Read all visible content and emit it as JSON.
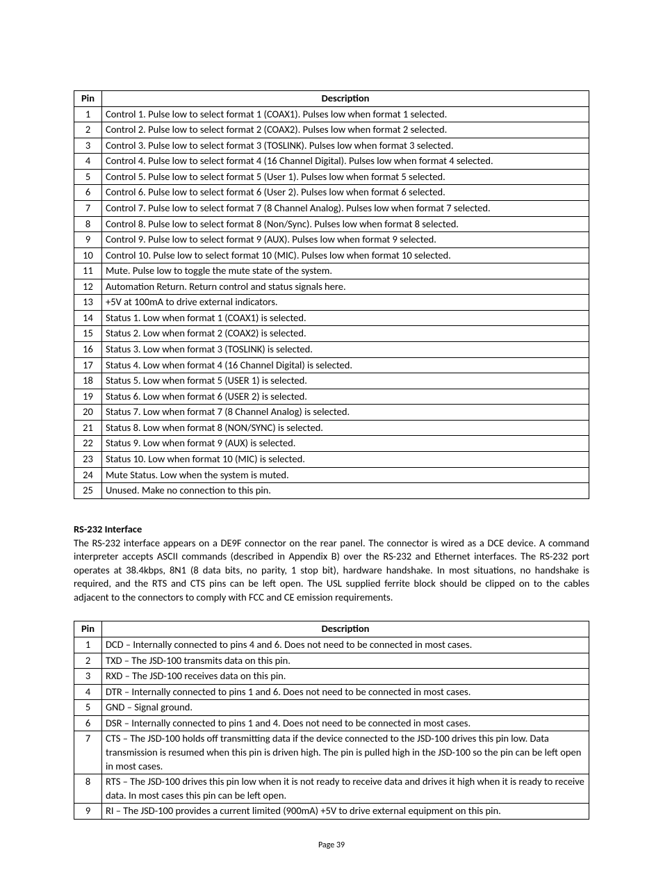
{
  "table1": {
    "headers": {
      "pin": "Pin",
      "desc": "Description"
    },
    "rows": [
      {
        "pin": "1",
        "desc": "Control 1.  Pulse low to select format 1 (COAX1). Pulses low when format 1 selected."
      },
      {
        "pin": "2",
        "desc": "Control 2.  Pulse low to select format 2 (COAX2). Pulses low when format 2 selected."
      },
      {
        "pin": "3",
        "desc": "Control 3.  Pulse low to select format 3 (TOSLINK). Pulses low when format 3 selected."
      },
      {
        "pin": "4",
        "desc": "Control 4.  Pulse low to select format 4 (16 Channel Digital). Pulses low when format 4 selected."
      },
      {
        "pin": "5",
        "desc": "Control 5.  Pulse low to select format 5 (User 1). Pulses low when format 5 selected."
      },
      {
        "pin": "6",
        "desc": "Control 6.  Pulse low to select format 6 (User 2). Pulses low when format 6 selected."
      },
      {
        "pin": "7",
        "desc": "Control 7.  Pulse low to select format 7 (8 Channel Analog). Pulses low when format 7 selected."
      },
      {
        "pin": "8",
        "desc": "Control 8.  Pulse low to select format 8 (Non/Sync). Pulses low when format 8 selected."
      },
      {
        "pin": "9",
        "desc": "Control 9.  Pulse low to select format 9 (AUX). Pulses low when format 9 selected."
      },
      {
        "pin": "10",
        "desc": "Control 10.  Pulse low to select format 10 (MIC). Pulses low when format 10 selected."
      },
      {
        "pin": "11",
        "desc": "Mute.  Pulse low to toggle the mute state of the system."
      },
      {
        "pin": "12",
        "desc": "Automation Return.  Return control and status signals here."
      },
      {
        "pin": "13",
        "desc": "+5V at 100mA to drive external indicators."
      },
      {
        "pin": "14",
        "desc": "Status 1.  Low when format 1 (COAX1) is selected."
      },
      {
        "pin": "15",
        "desc": "Status 2.  Low when format 2 (COAX2) is selected."
      },
      {
        "pin": "16",
        "desc": "Status 3.  Low when format 3 (TOSLINK) is selected."
      },
      {
        "pin": "17",
        "desc": "Status 4.  Low when format 4 (16 Channel Digital) is selected."
      },
      {
        "pin": "18",
        "desc": "Status 5.  Low when format 5 (USER 1) is selected."
      },
      {
        "pin": "19",
        "desc": "Status 6.  Low when format 6 (USER 2) is selected."
      },
      {
        "pin": "20",
        "desc": "Status 7.  Low when format 7 (8 Channel Analog) is selected."
      },
      {
        "pin": "21",
        "desc": "Status 8.  Low when format 8 (NON/SYNC) is selected."
      },
      {
        "pin": "22",
        "desc": "Status 9.  Low when format 9 (AUX) is selected."
      },
      {
        "pin": "23",
        "desc": "Status 10.  Low when format 10 (MIC) is selected."
      },
      {
        "pin": "24",
        "desc": "Mute Status.  Low when the system is muted."
      },
      {
        "pin": "25",
        "desc": "Unused.  Make no connection to this pin."
      }
    ]
  },
  "section": {
    "heading": "RS-232 Interface",
    "body": "The RS-232 interface appears on a DE9F connector on the rear panel. The connector is wired as a DCE device.  A command interpreter accepts ASCII commands (described in Appendix B) over the RS-232 and Ethernet interfaces. The RS-232 port operates at 38.4kbps, 8N1 (8 data bits, no parity, 1 stop bit), hardware handshake. In most situations, no handshake is required, and the RTS and CTS pins can be left open.  The USL supplied ferrite block should be clipped on to the cables adjacent to the connectors to comply with FCC and CE emission requirements."
  },
  "table2": {
    "headers": {
      "pin": "Pin",
      "desc": "Description"
    },
    "rows": [
      {
        "pin": "1",
        "desc": "DCD – Internally connected to pins 4 and 6.  Does not need to be connected in most cases."
      },
      {
        "pin": "2",
        "desc": "TXD – The JSD-100 transmits data on this pin."
      },
      {
        "pin": "3",
        "desc": "RXD – The JSD-100 receives data on this pin."
      },
      {
        "pin": "4",
        "desc": "DTR – Internally connected to pins 1 and 6.  Does not need to be connected in most cases."
      },
      {
        "pin": "5",
        "desc": "GND – Signal ground."
      },
      {
        "pin": "6",
        "desc": "DSR – Internally connected to pins 1 and 4. Does not need to be connected in most cases."
      },
      {
        "pin": "7",
        "desc": "CTS – The JSD-100 holds off transmitting data if the device connected to the JSD-100 drives this pin low. Data transmission is resumed when this pin is driven high.  The pin is pulled high in the JSD-100 so the pin can be left open in most cases."
      },
      {
        "pin": "8",
        "desc": "RTS – The JSD-100 drives this pin low when it is not ready to receive data and drives it high when it is ready to receive data.  In most cases this pin can be left open."
      },
      {
        "pin": "9",
        "desc": "RI – The JSD-100 provides a current limited (900mA) +5V to drive external equipment on this pin."
      }
    ]
  },
  "footer": {
    "pageNumber": "Page 39"
  }
}
